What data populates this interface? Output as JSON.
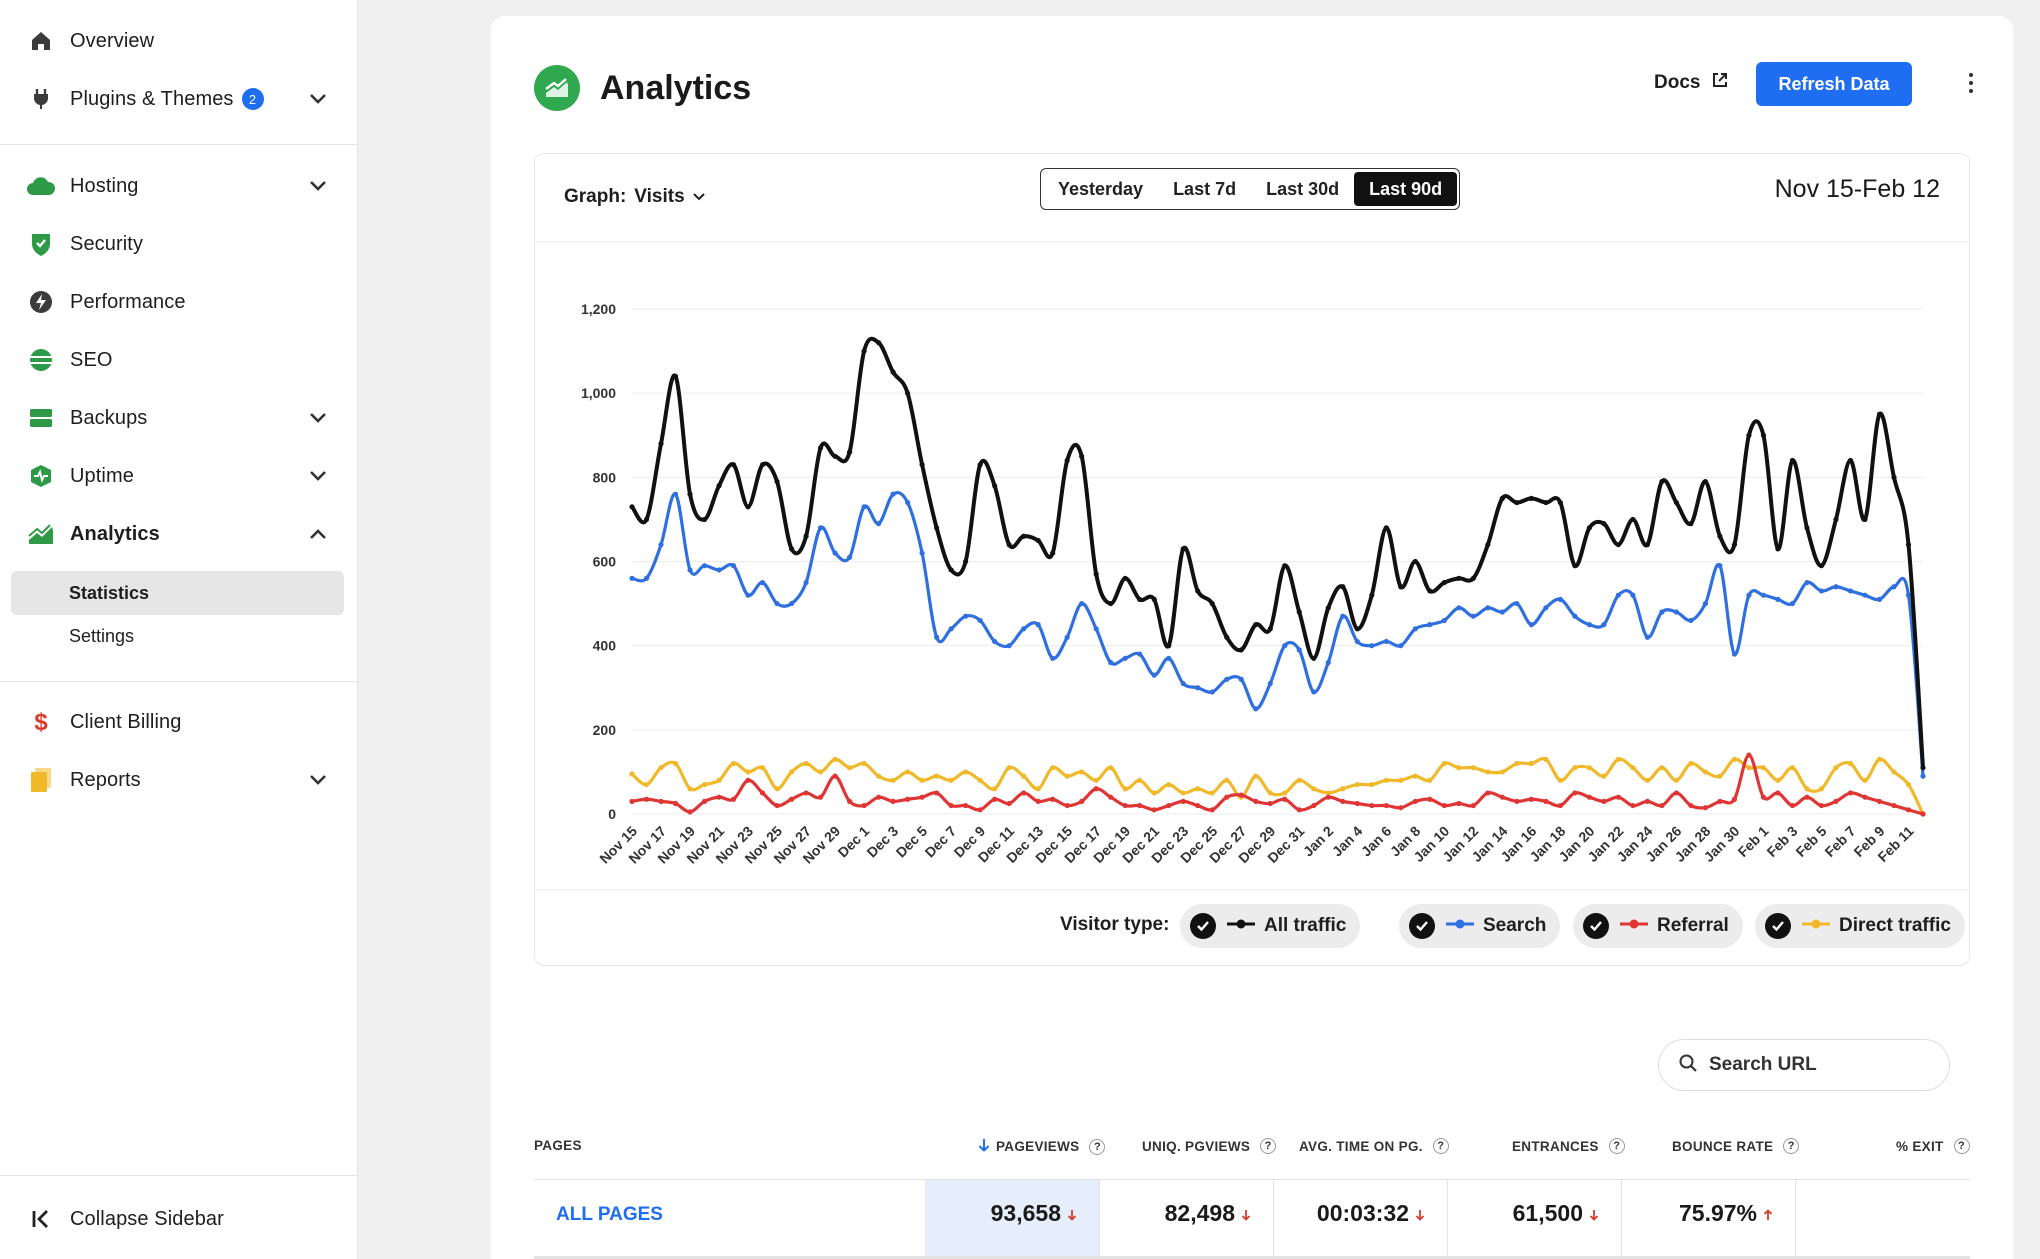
{
  "sidebar": {
    "items": [
      {
        "label": "Overview",
        "icon": "home-icon"
      },
      {
        "label": "Plugins & Themes",
        "icon": "plug-icon",
        "badge": "2"
      },
      {
        "label": "Hosting",
        "icon": "cloud-icon"
      },
      {
        "label": "Security",
        "icon": "shield-icon"
      },
      {
        "label": "Performance",
        "icon": "bolt-icon"
      },
      {
        "label": "SEO",
        "icon": "globe-icon"
      },
      {
        "label": "Backups",
        "icon": "server-icon"
      },
      {
        "label": "Uptime",
        "icon": "pulse-icon"
      },
      {
        "label": "Analytics",
        "icon": "chart-icon"
      },
      {
        "label": "Client Billing",
        "icon": "dollar-icon"
      },
      {
        "label": "Reports",
        "icon": "document-icon"
      }
    ],
    "analytics_sub": [
      {
        "label": "Statistics"
      },
      {
        "label": "Settings"
      }
    ],
    "collapse_label": "Collapse Sidebar"
  },
  "header": {
    "title": "Analytics",
    "docs_label": "Docs",
    "refresh_label": "Refresh Data"
  },
  "chart_toolbar": {
    "graph_label": "Graph:",
    "graph_value": "Visits",
    "range_tabs": [
      "Yesterday",
      "Last 7d",
      "Last 30d",
      "Last 90d"
    ],
    "active_range": "Last 90d",
    "date_range": "Nov 15-Feb 12"
  },
  "legend": {
    "label": "Visitor type:",
    "items": [
      "All traffic",
      "Search",
      "Referral",
      "Direct traffic"
    ]
  },
  "search": {
    "placeholder": "Search URL"
  },
  "table": {
    "headers": [
      "PAGES",
      "PAGEVIEWS",
      "UNIQ. PGVIEWS",
      "AVG. TIME ON PG.",
      "ENTRANCES",
      "BOUNCE RATE",
      "% EXIT"
    ],
    "help_glyph": "?",
    "rows": [
      {
        "page": "ALL PAGES",
        "pageviews": "93,658",
        "uniq": "82,498",
        "avg_time": "00:03:32",
        "entrances": "61,500",
        "bounce": "75.97%"
      }
    ]
  },
  "colors": {
    "accent": "#1f6df0",
    "all_traffic": "#111111",
    "search": "#2f6fe0",
    "referral": "#e03535",
    "direct": "#f0b92a",
    "logo_green": "#2fa84f"
  },
  "chart_data": {
    "type": "line",
    "ylim": [
      0,
      1200
    ],
    "yticks": [
      0,
      200,
      400,
      600,
      800,
      1000,
      1200
    ],
    "ytick_labels": [
      "0",
      "200",
      "400",
      "600",
      "800",
      "1,000",
      "1,200"
    ],
    "x_tick_labels": [
      "Nov 15",
      "Nov 17",
      "Nov 19",
      "Nov 21",
      "Nov 23",
      "Nov 25",
      "Nov 27",
      "Nov 29",
      "Dec 1",
      "Dec 3",
      "Dec 5",
      "Dec 7",
      "Dec 9",
      "Dec 11",
      "Dec 13",
      "Dec 15",
      "Dec 17",
      "Dec 19",
      "Dec 21",
      "Dec 23",
      "Dec 25",
      "Dec 27",
      "Dec 29",
      "Dec 31",
      "Jan 2",
      "Jan 4",
      "Jan 6",
      "Jan 8",
      "Jan 10",
      "Jan 12",
      "Jan 14",
      "Jan 16",
      "Jan 18",
      "Jan 20",
      "Jan 22",
      "Jan 24",
      "Jan 26",
      "Jan 28",
      "Jan 30",
      "Feb 1",
      "Feb 3",
      "Feb 5",
      "Feb 7",
      "Feb 9",
      "Feb 11"
    ],
    "series": [
      {
        "name": "All traffic",
        "color": "#111111",
        "values": [
          730,
          700,
          880,
          1040,
          760,
          700,
          780,
          830,
          730,
          830,
          790,
          630,
          660,
          870,
          850,
          860,
          1100,
          1120,
          1050,
          1000,
          830,
          680,
          580,
          600,
          830,
          780,
          640,
          660,
          650,
          620,
          840,
          850,
          570,
          500,
          560,
          510,
          510,
          400,
          630,
          530,
          500,
          420,
          390,
          450,
          440,
          590,
          480,
          370,
          490,
          540,
          440,
          520,
          680,
          540,
          600,
          530,
          550,
          560,
          560,
          640,
          750,
          740,
          750,
          740,
          740,
          590,
          680,
          690,
          640,
          700,
          640,
          790,
          740,
          690,
          790,
          660,
          640,
          900,
          900,
          630,
          840,
          680,
          590,
          700,
          840,
          700,
          950,
          800,
          640,
          110
        ]
      },
      {
        "name": "Search",
        "color": "#2f6fe0",
        "values": [
          560,
          560,
          640,
          760,
          580,
          590,
          580,
          590,
          520,
          550,
          500,
          500,
          550,
          680,
          620,
          610,
          730,
          690,
          760,
          740,
          620,
          420,
          440,
          470,
          460,
          410,
          400,
          440,
          450,
          370,
          420,
          500,
          440,
          360,
          370,
          380,
          330,
          370,
          310,
          300,
          290,
          320,
          320,
          250,
          310,
          400,
          390,
          290,
          360,
          470,
          410,
          400,
          410,
          400,
          440,
          450,
          460,
          490,
          470,
          490,
          480,
          500,
          450,
          490,
          510,
          470,
          450,
          450,
          520,
          520,
          420,
          480,
          480,
          460,
          500,
          590,
          380,
          520,
          520,
          510,
          500,
          550,
          530,
          540,
          530,
          520,
          510,
          540,
          520,
          90
        ]
      },
      {
        "name": "Referral",
        "color": "#e03535",
        "values": [
          30,
          35,
          30,
          25,
          5,
          30,
          40,
          35,
          80,
          50,
          20,
          35,
          50,
          40,
          90,
          30,
          20,
          40,
          30,
          35,
          40,
          50,
          20,
          20,
          10,
          35,
          25,
          50,
          30,
          35,
          20,
          30,
          60,
          40,
          20,
          20,
          10,
          20,
          30,
          20,
          10,
          40,
          45,
          30,
          25,
          35,
          10,
          20,
          40,
          30,
          25,
          20,
          20,
          15,
          30,
          35,
          20,
          25,
          20,
          50,
          40,
          30,
          35,
          30,
          20,
          50,
          40,
          30,
          40,
          20,
          30,
          20,
          50,
          20,
          15,
          30,
          35,
          140,
          40,
          50,
          20,
          40,
          20,
          30,
          50,
          40,
          30,
          20,
          10,
          0
        ]
      },
      {
        "name": "Direct traffic",
        "color": "#f0b92a",
        "values": [
          95,
          70,
          110,
          120,
          60,
          70,
          80,
          120,
          100,
          110,
          60,
          100,
          120,
          100,
          130,
          110,
          120,
          90,
          80,
          100,
          80,
          90,
          80,
          100,
          80,
          60,
          110,
          90,
          60,
          110,
          90,
          100,
          80,
          110,
          60,
          80,
          50,
          70,
          50,
          60,
          50,
          80,
          40,
          90,
          50,
          50,
          80,
          60,
          50,
          60,
          70,
          70,
          80,
          80,
          90,
          80,
          120,
          110,
          110,
          100,
          100,
          120,
          120,
          130,
          80,
          110,
          110,
          90,
          130,
          110,
          80,
          110,
          80,
          120,
          100,
          90,
          130,
          110,
          110,
          80,
          110,
          60,
          60,
          110,
          120,
          80,
          130,
          100,
          70,
          0
        ]
      }
    ]
  }
}
